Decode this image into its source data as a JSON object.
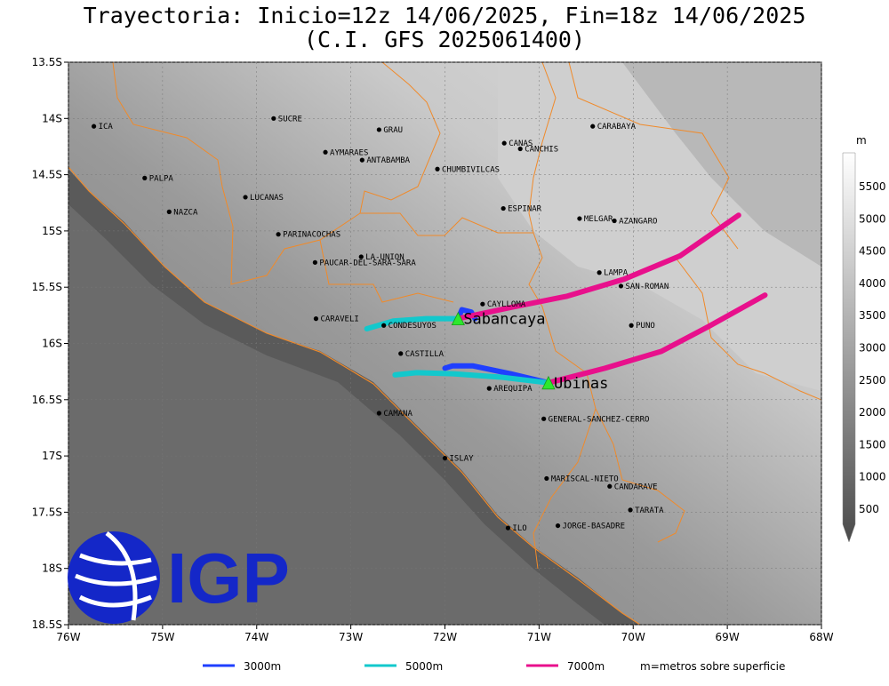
{
  "title": {
    "line1": "Trayectoria: Inicio=12z 14/06/2025, Fin=18z 14/06/2025",
    "line2": "(C.I. GFS 2025061400)"
  },
  "map": {
    "lon_range": [
      -76,
      -68
    ],
    "lat_range": [
      -18.5,
      -13.5
    ],
    "x_ticks": [
      {
        "v": -76,
        "label": "76W"
      },
      {
        "v": -75,
        "label": "75W"
      },
      {
        "v": -74,
        "label": "74W"
      },
      {
        "v": -73,
        "label": "73W"
      },
      {
        "v": -72,
        "label": "72W"
      },
      {
        "v": -71,
        "label": "71W"
      },
      {
        "v": -70,
        "label": "70W"
      },
      {
        "v": -69,
        "label": "69W"
      },
      {
        "v": -68,
        "label": "68W"
      }
    ],
    "y_ticks": [
      {
        "v": -13.5,
        "label": "13.5S"
      },
      {
        "v": -14,
        "label": "14S"
      },
      {
        "v": -14.5,
        "label": "14.5S"
      },
      {
        "v": -15,
        "label": "15S"
      },
      {
        "v": -15.5,
        "label": "15.5S"
      },
      {
        "v": -16,
        "label": "16S"
      },
      {
        "v": -16.5,
        "label": "16.5S"
      },
      {
        "v": -17,
        "label": "17S"
      },
      {
        "v": -17.5,
        "label": "17.5S"
      },
      {
        "v": -18,
        "label": "18S"
      },
      {
        "v": -18.5,
        "label": "18.5S"
      }
    ],
    "cities": [
      {
        "name": "ICA",
        "lon": -75.73,
        "lat": -14.07
      },
      {
        "name": "SUCRE",
        "lon": -73.82,
        "lat": -14.0
      },
      {
        "name": "GRAU",
        "lon": -72.7,
        "lat": -14.1
      },
      {
        "name": "AYMARAES",
        "lon": -73.27,
        "lat": -14.3
      },
      {
        "name": "ANTABAMBA",
        "lon": -72.88,
        "lat": -14.37
      },
      {
        "name": "CHUMBIVILCAS",
        "lon": -72.08,
        "lat": -14.45
      },
      {
        "name": "CANAS",
        "lon": -71.37,
        "lat": -14.22
      },
      {
        "name": "CANCHIS",
        "lon": -71.2,
        "lat": -14.27
      },
      {
        "name": "CARABAYA",
        "lon": -70.43,
        "lat": -14.07
      },
      {
        "name": "PALPA",
        "lon": -75.19,
        "lat": -14.53
      },
      {
        "name": "LUCANAS",
        "lon": -74.12,
        "lat": -14.7
      },
      {
        "name": "NAZCA",
        "lon": -74.93,
        "lat": -14.83
      },
      {
        "name": "ESPINAR",
        "lon": -71.38,
        "lat": -14.8
      },
      {
        "name": "MELGAR",
        "lon": -70.57,
        "lat": -14.89
      },
      {
        "name": "AZANGARO",
        "lon": -70.2,
        "lat": -14.91
      },
      {
        "name": "PARINACOCHAS",
        "lon": -73.77,
        "lat": -15.03
      },
      {
        "name": "LA-UNION",
        "lon": -72.89,
        "lat": -15.23
      },
      {
        "name": "PAUCAR-DEL-SARA-SARA",
        "lon": -73.38,
        "lat": -15.28
      },
      {
        "name": "LAMPA",
        "lon": -70.36,
        "lat": -15.37
      },
      {
        "name": "SAN-ROMAN",
        "lon": -70.13,
        "lat": -15.49
      },
      {
        "name": "CAYLLOMA",
        "lon": -71.6,
        "lat": -15.65
      },
      {
        "name": "CARAVELI",
        "lon": -73.37,
        "lat": -15.78
      },
      {
        "name": "CONDESUYOS",
        "lon": -72.65,
        "lat": -15.84
      },
      {
        "name": "PUNO",
        "lon": -70.02,
        "lat": -15.84
      },
      {
        "name": "CASTILLA",
        "lon": -72.47,
        "lat": -16.09
      },
      {
        "name": "AREQUIPA",
        "lon": -71.53,
        "lat": -16.4
      },
      {
        "name": "GENERAL-SANCHEZ-CERRO",
        "lon": -70.95,
        "lat": -16.67
      },
      {
        "name": "CAMANA",
        "lon": -72.7,
        "lat": -16.62
      },
      {
        "name": "ISLAY",
        "lon": -72.0,
        "lat": -17.02
      },
      {
        "name": "MARISCAL-NIETO",
        "lon": -70.92,
        "lat": -17.2
      },
      {
        "name": "CANDARAVE",
        "lon": -70.25,
        "lat": -17.27
      },
      {
        "name": "TARATA",
        "lon": -70.03,
        "lat": -17.48
      },
      {
        "name": "ILO",
        "lon": -71.33,
        "lat": -17.64
      },
      {
        "name": "JORGE-BASADRE",
        "lon": -70.8,
        "lat": -17.62
      }
    ],
    "volcanoes": [
      {
        "name": "Sabancaya",
        "lon": -71.86,
        "lat": -15.78
      },
      {
        "name": "Ubinas",
        "lon": -70.9,
        "lat": -16.35
      }
    ],
    "trajectories": [
      {
        "from": "Sabancaya",
        "level": "3000m",
        "color": "#1f3fff",
        "path": [
          [
            -71.86,
            -15.78
          ],
          [
            -71.82,
            -15.7
          ],
          [
            -71.72,
            -15.72
          ],
          [
            -71.68,
            -15.78
          ]
        ]
      },
      {
        "from": "Sabancaya",
        "level": "5000m",
        "color": "#12c8cc",
        "path": [
          [
            -71.86,
            -15.78
          ],
          [
            -72.2,
            -15.78
          ],
          [
            -72.55,
            -15.8
          ],
          [
            -72.83,
            -15.87
          ]
        ]
      },
      {
        "from": "Sabancaya",
        "level": "7000m",
        "color": "#e8108c",
        "path": [
          [
            -71.86,
            -15.78
          ],
          [
            -71.3,
            -15.68
          ],
          [
            -70.7,
            -15.58
          ],
          [
            -70.1,
            -15.43
          ],
          [
            -69.5,
            -15.22
          ],
          [
            -68.88,
            -14.86
          ]
        ]
      },
      {
        "from": "Ubinas",
        "level": "3000m",
        "color": "#1f3fff",
        "path": [
          [
            -70.9,
            -16.35
          ],
          [
            -71.3,
            -16.27
          ],
          [
            -71.7,
            -16.2
          ],
          [
            -71.92,
            -16.2
          ],
          [
            -72.0,
            -16.22
          ]
        ]
      },
      {
        "from": "Ubinas",
        "level": "5000m",
        "color": "#12c8cc",
        "path": [
          [
            -70.9,
            -16.35
          ],
          [
            -71.4,
            -16.3
          ],
          [
            -71.9,
            -16.27
          ],
          [
            -72.3,
            -16.26
          ],
          [
            -72.53,
            -16.28
          ]
        ]
      },
      {
        "from": "Ubinas",
        "level": "7000m",
        "color": "#e8108c",
        "path": [
          [
            -70.9,
            -16.35
          ],
          [
            -70.3,
            -16.22
          ],
          [
            -69.7,
            -16.07
          ],
          [
            -69.2,
            -15.85
          ],
          [
            -68.6,
            -15.57
          ]
        ]
      }
    ]
  },
  "colorbar": {
    "unit": "m",
    "labels": [
      "5500",
      "5000",
      "4500",
      "4000",
      "3500",
      "3000",
      "2500",
      "2000",
      "1500",
      "1000",
      "500"
    ]
  },
  "legend": {
    "items": [
      {
        "label": "3000m",
        "color": "#1f3fff"
      },
      {
        "label": "5000m",
        "color": "#12c8cc"
      },
      {
        "label": "7000m",
        "color": "#e8108c"
      }
    ],
    "note": "m=metros sobre superficie"
  },
  "logo": {
    "text": "IGP",
    "color": "#1427c8"
  }
}
